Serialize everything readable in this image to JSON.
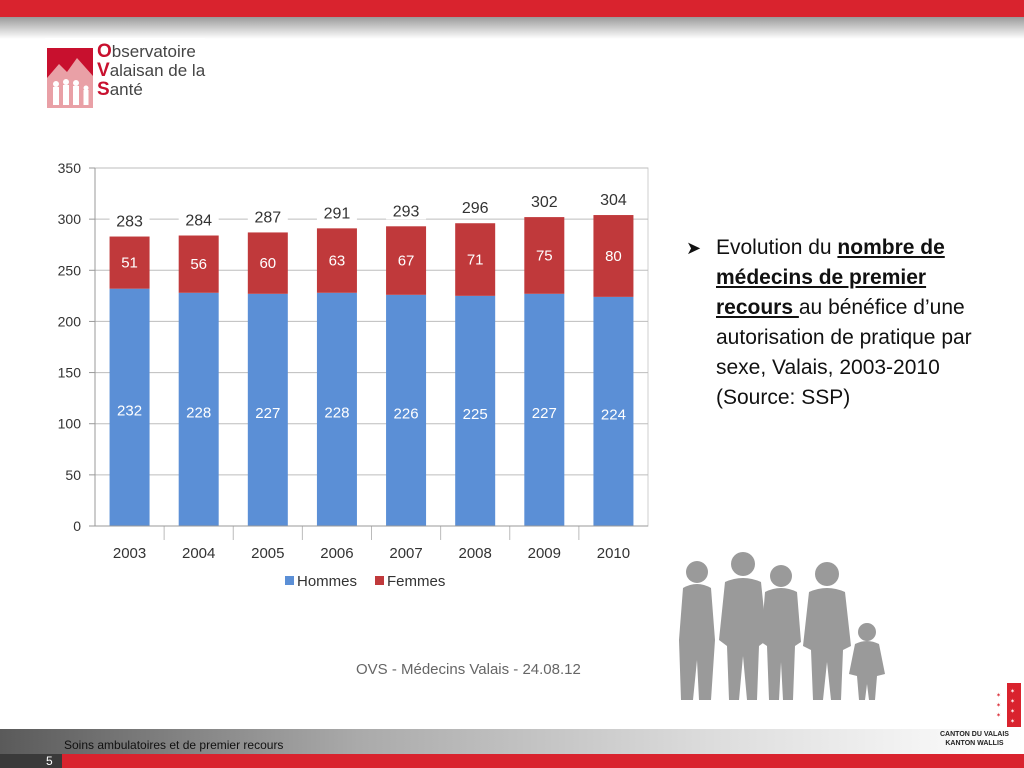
{
  "logo": {
    "line1_initial": "O",
    "line1_rest": "bservatoire",
    "line2_initial": "V",
    "line2_rest": "alaisan de la",
    "line3_initial": "S",
    "line3_rest": "anté"
  },
  "bullet": {
    "lead": "Evolution du ",
    "bold": "nombre de médecins de premier recours ",
    "rest": "au bénéfice d’une autorisation de pratique par sexe, Valais, 2003-2010 (Source: SSP)"
  },
  "footnote": "OVS - Médecins Valais - 24.08.12",
  "footer": {
    "section": "Soins ambulatoires et de premier recours",
    "page": "5",
    "canton_line1": "CANTON DU VALAIS",
    "canton_line2": "KANTON WALLIS"
  },
  "colors": {
    "hommes": "#5b8fd6",
    "femmes": "#c0393b",
    "accent": "#d9232e"
  },
  "chart_data": {
    "type": "bar",
    "stacked": true,
    "categories": [
      "2003",
      "2004",
      "2005",
      "2006",
      "2007",
      "2008",
      "2009",
      "2010"
    ],
    "series": [
      {
        "name": "Hommes",
        "values": [
          232,
          228,
          227,
          228,
          226,
          225,
          227,
          224
        ]
      },
      {
        "name": "Femmes",
        "values": [
          51,
          56,
          60,
          63,
          67,
          71,
          75,
          80
        ]
      }
    ],
    "totals": [
      283,
      284,
      287,
      291,
      293,
      296,
      302,
      304
    ],
    "ylim": [
      0,
      350
    ],
    "yticks": [
      "0",
      "50",
      "100",
      "150",
      "200",
      "250",
      "300",
      "350"
    ],
    "grid": true,
    "legend": "bottom"
  }
}
